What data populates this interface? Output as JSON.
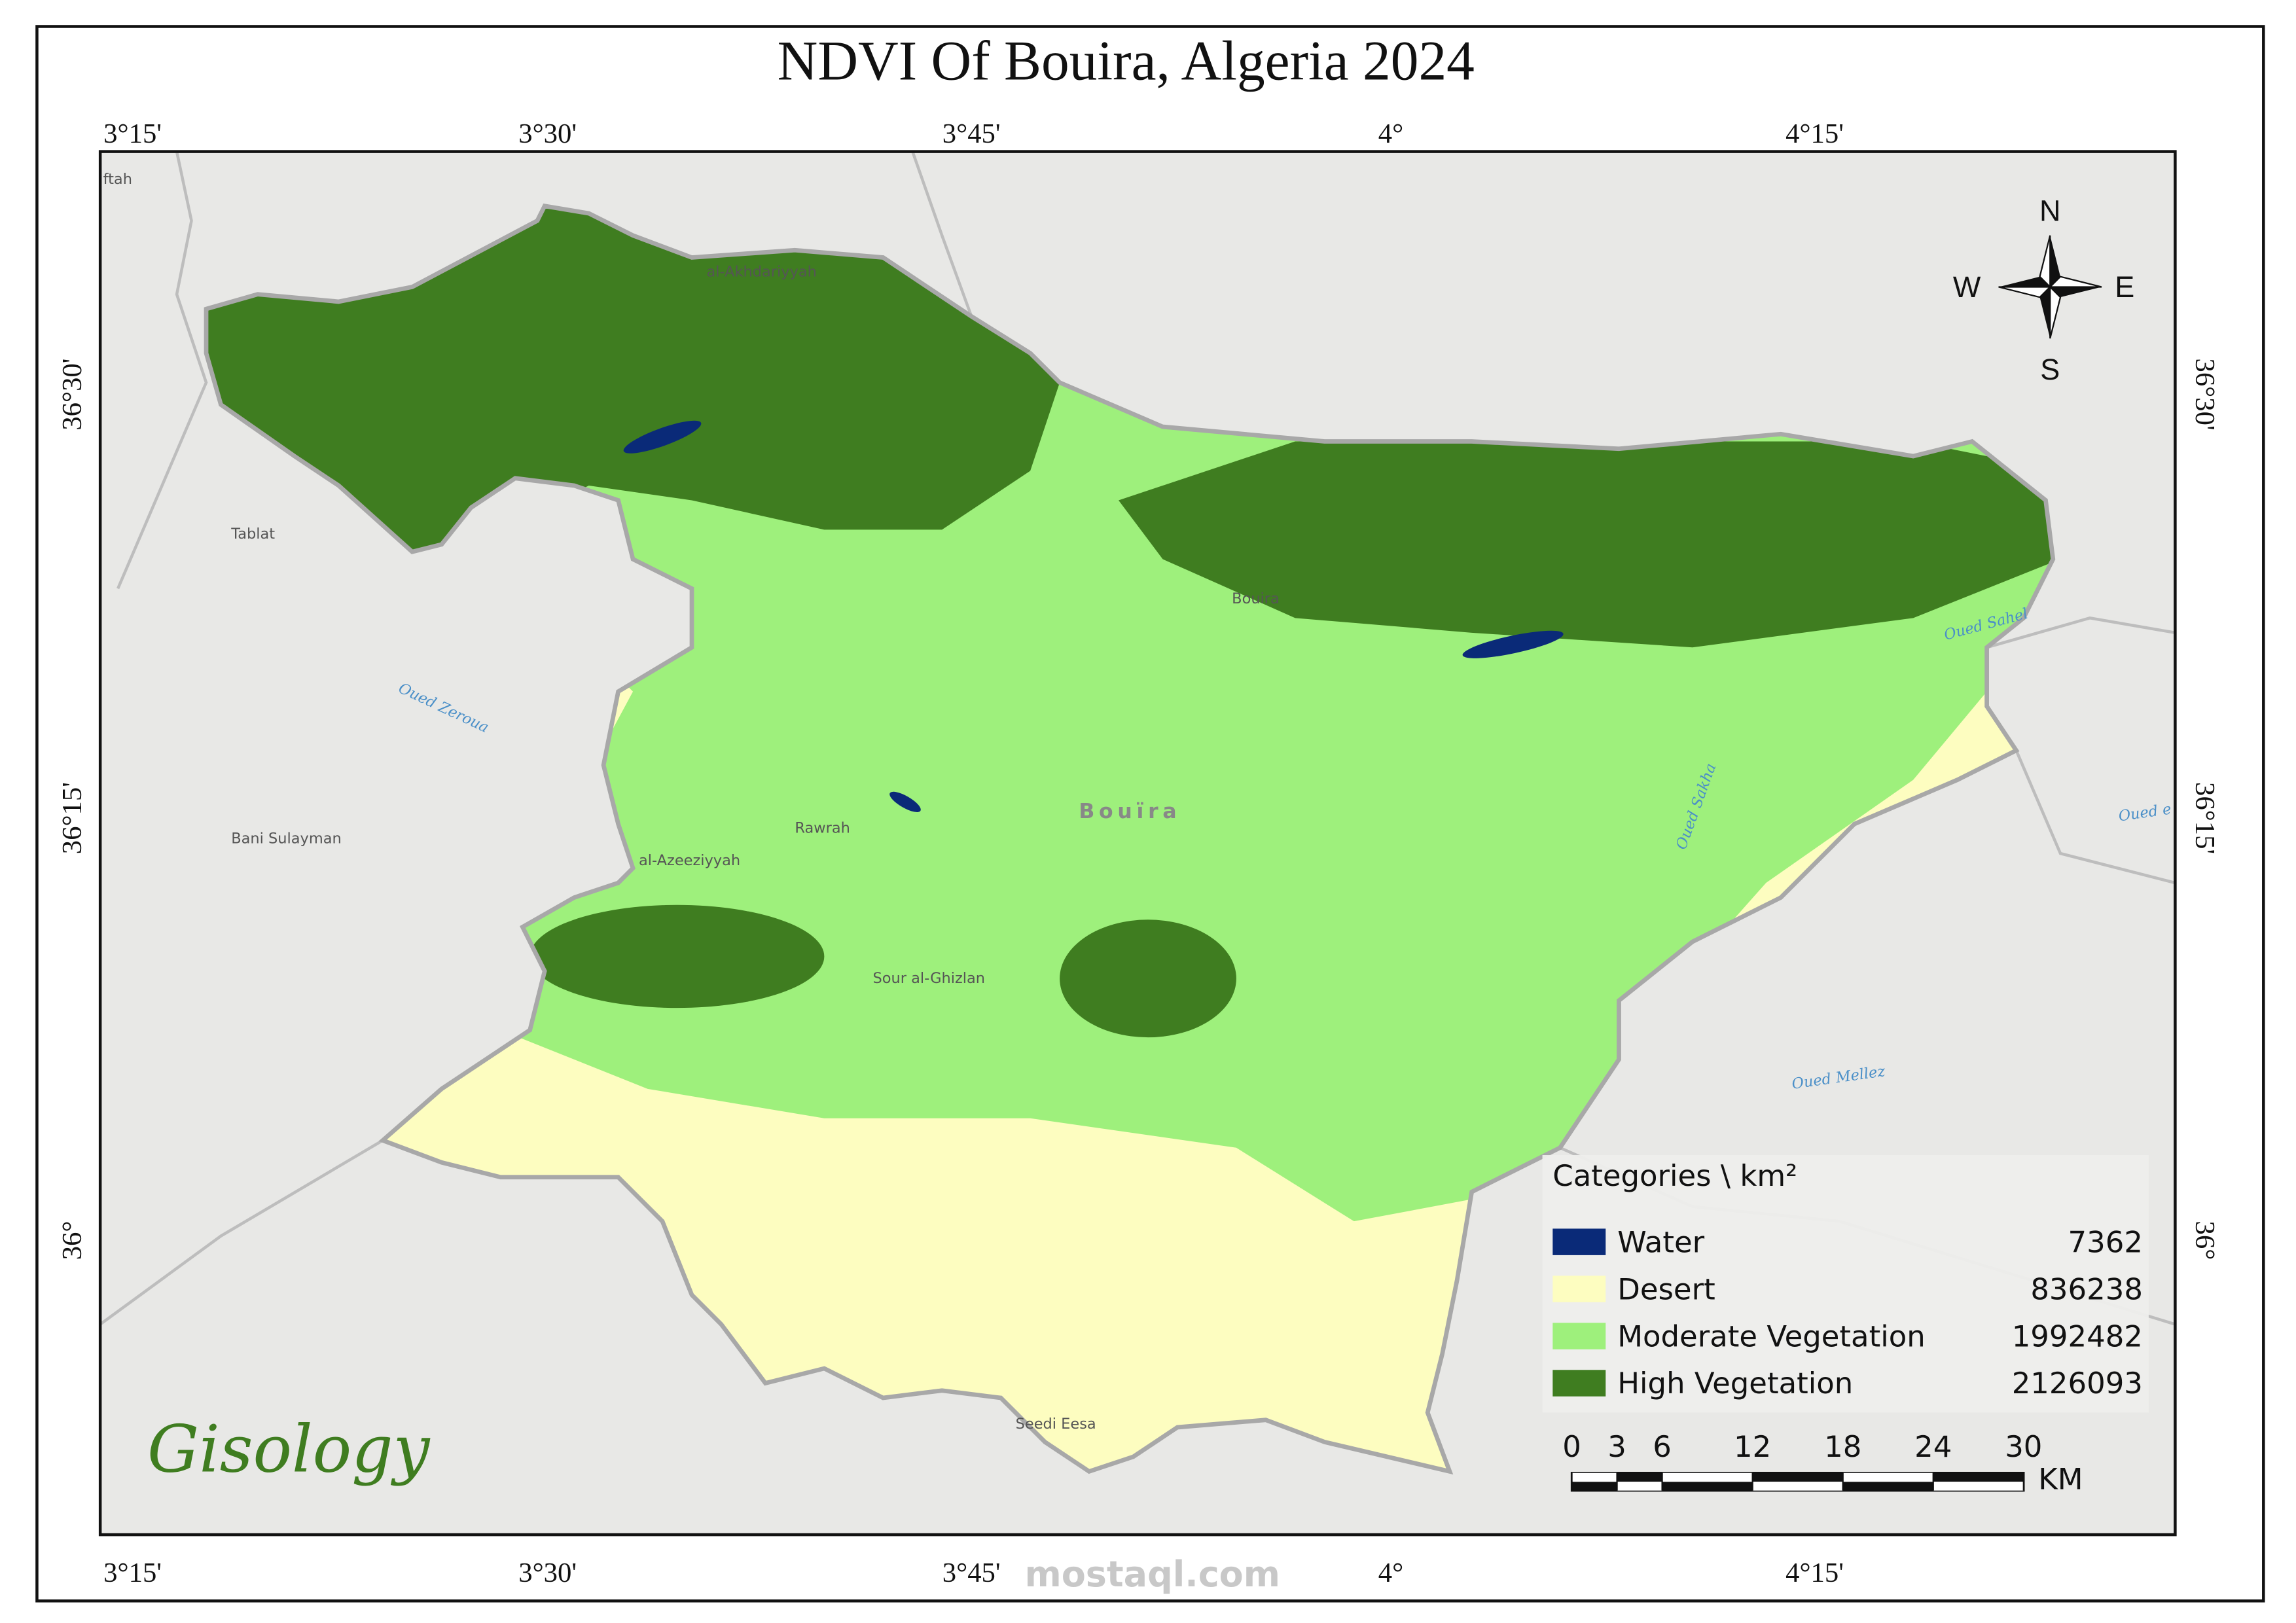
{
  "title": "NDVI Of Bouira, Algeria 2024",
  "graticule": {
    "longitude": [
      "3°15'",
      "3°30'",
      "3°45'",
      "4°",
      "4°15'"
    ],
    "latitude": [
      "36°30'",
      "36°15'",
      "36°"
    ]
  },
  "places": [
    "ftah",
    "al-Akhdariyyah",
    "Tablat",
    "Bouira",
    "Rawrah",
    "Bani Sulayman",
    "al-Azeeziyyah",
    "Sour al-Ghizlan",
    "Seedi Eesa",
    "Bouïra"
  ],
  "rivers": [
    "Oued Zeroua",
    "Oued Sahel",
    "Oued Sakha",
    "Oued Mellez",
    "Oued e"
  ],
  "compass": {
    "north": "N",
    "south": "S",
    "east": "E",
    "west": "W"
  },
  "legend": {
    "title": "Categories \\ km²",
    "items": [
      {
        "label": "Water",
        "value": 7362,
        "color": "#0a2a78"
      },
      {
        "label": "Desert",
        "value": 836238,
        "color": "#fdfdc0"
      },
      {
        "label": "Moderate Vegetation",
        "value": 1992482,
        "color": "#9ef07c"
      },
      {
        "label": "High Vegetation",
        "value": 2126093,
        "color": "#3f7d20"
      }
    ]
  },
  "scale_bar": {
    "ticks": [
      0,
      3,
      6,
      12,
      18,
      24,
      30
    ],
    "unit": "KM"
  },
  "logo": "Gisology",
  "watermark": "mostaql.com"
}
